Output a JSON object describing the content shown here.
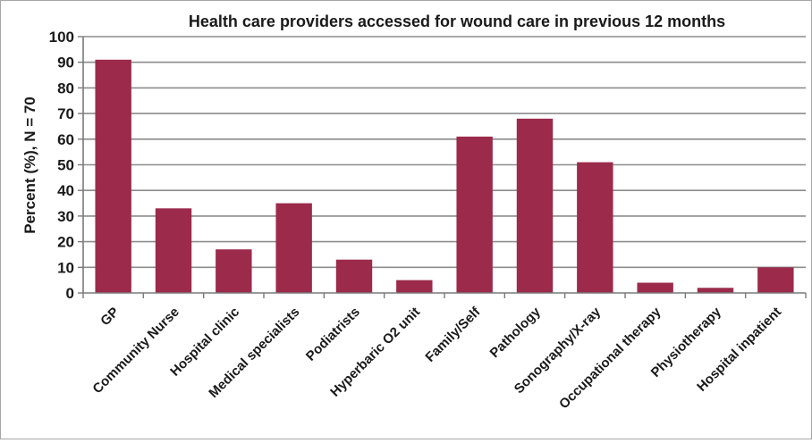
{
  "chart_data": {
    "type": "bar",
    "title": "Health care providers accessed for wound care in previous 12 months",
    "xlabel": "",
    "ylabel": "Percent (%),  N = 70",
    "ylim": [
      0,
      100
    ],
    "yticks": [
      0,
      10,
      20,
      30,
      40,
      50,
      60,
      70,
      80,
      90,
      100
    ],
    "grid": true,
    "bar_color": "#9b2a4b",
    "categories": [
      "GP",
      "Community Nurse",
      "Hospital clinic",
      "Medical specialists",
      "Podiatrists",
      "Hyperbaric O2 unit",
      "Family/Self",
      "Pathology",
      "Sonography/X-ray",
      "Occupational therapy",
      "Physiotherapy",
      "Hospital inpatient"
    ],
    "values": [
      91,
      33,
      17,
      35,
      13,
      5,
      61,
      68,
      51,
      4,
      2,
      10
    ]
  }
}
